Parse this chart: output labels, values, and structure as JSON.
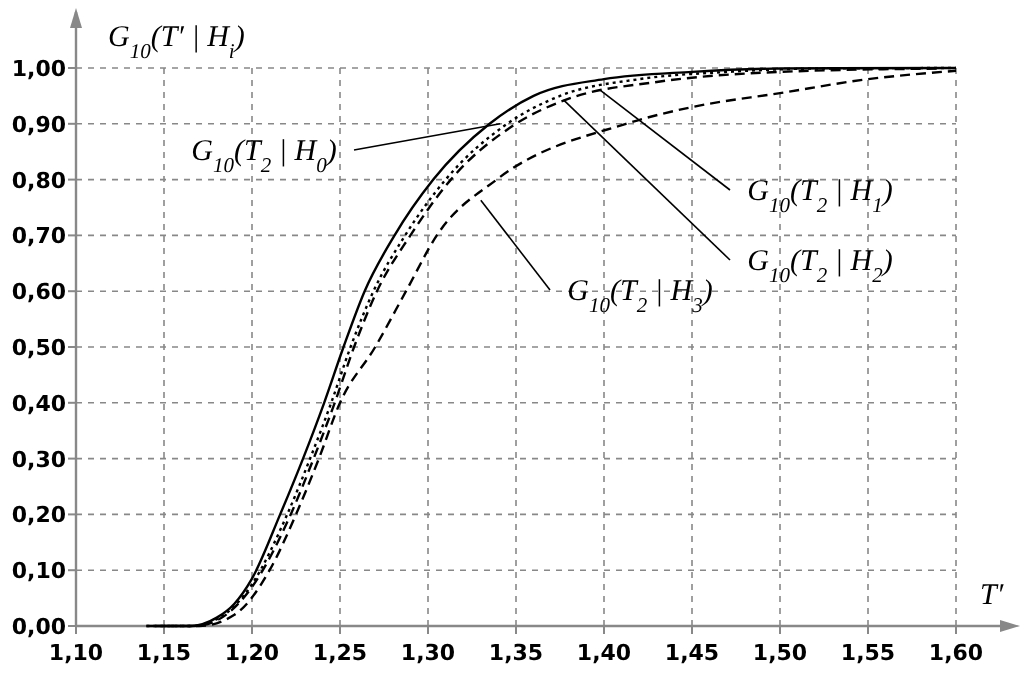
{
  "chart_data": {
    "type": "line",
    "xlabel": "T′",
    "ylabel": "G$_{10}$(T′ | H$_{i}$)",
    "xlim": [
      1.1,
      1.6
    ],
    "ylim": [
      0,
      1
    ],
    "xticks": [
      {
        "value": 1.1,
        "label": "1,10"
      },
      {
        "value": 1.15,
        "label": "1,15"
      },
      {
        "value": 1.2,
        "label": "1,20"
      },
      {
        "value": 1.25,
        "label": "1,25"
      },
      {
        "value": 1.3,
        "label": "1,30"
      },
      {
        "value": 1.35,
        "label": "1,35"
      },
      {
        "value": 1.4,
        "label": "1,40"
      },
      {
        "value": 1.45,
        "label": "1,45"
      },
      {
        "value": 1.5,
        "label": "1,50"
      },
      {
        "value": 1.55,
        "label": "1,55"
      },
      {
        "value": 1.6,
        "label": "1,60"
      }
    ],
    "yticks": [
      {
        "value": 0,
        "label": "0,00"
      },
      {
        "value": 0.1,
        "label": "0,10"
      },
      {
        "value": 0.2,
        "label": "0,20"
      },
      {
        "value": 0.3,
        "label": "0,30"
      },
      {
        "value": 0.4,
        "label": "0,40"
      },
      {
        "value": 0.5,
        "label": "0,50"
      },
      {
        "value": 0.6,
        "label": "0,60"
      },
      {
        "value": 0.7,
        "label": "0,70"
      },
      {
        "value": 0.8,
        "label": "0,80"
      },
      {
        "value": 0.9,
        "label": "0,90"
      },
      {
        "value": 1,
        "label": "1,00"
      }
    ],
    "grid": true,
    "series": [
      {
        "color": "#000000",
        "line_style": "solid",
        "x": [
          1.14,
          1.165,
          1.18,
          1.19,
          1.2,
          1.216,
          1.229,
          1.241,
          1.252,
          1.264,
          1.281,
          1.303,
          1.335,
          1.36,
          1.4,
          1.45,
          1.5,
          1.6
        ],
        "values": [
          0,
          0,
          0.015,
          0.04,
          0.085,
          0.2,
          0.3,
          0.4,
          0.5,
          0.6,
          0.7,
          0.8,
          0.9,
          0.95,
          0.98,
          0.993,
          0.999,
          1
        ]
      },
      {
        "color": "#000000",
        "line_style": "dotted",
        "x": [
          1.14,
          1.165,
          1.18,
          1.2,
          1.22,
          1.233,
          1.245,
          1.256,
          1.269,
          1.287,
          1.31,
          1.345,
          1.375,
          1.42,
          1.47,
          1.52,
          1.6
        ],
        "values": [
          0,
          0,
          0.012,
          0.075,
          0.2,
          0.3,
          0.4,
          0.5,
          0.6,
          0.7,
          0.8,
          0.9,
          0.95,
          0.98,
          0.993,
          0.999,
          1
        ]
      },
      {
        "color": "#000000",
        "line_style": "dashed",
        "x": [
          1.145,
          1.167,
          1.18,
          1.2,
          1.222,
          1.235,
          1.247,
          1.258,
          1.271,
          1.29,
          1.313,
          1.35,
          1.38,
          1.43,
          1.5,
          1.59
        ],
        "values": [
          0,
          0,
          0.01,
          0.07,
          0.2,
          0.3,
          0.4,
          0.5,
          0.6,
          0.7,
          0.8,
          0.9,
          0.945,
          0.975,
          0.993,
          0.999
        ]
      },
      {
        "color": "#000000",
        "line_style": "dashed",
        "x": [
          1.15,
          1.17,
          1.19,
          1.21,
          1.225,
          1.238,
          1.25,
          1.27,
          1.2875,
          1.305,
          1.339,
          1.4125,
          1.45,
          1.5,
          1.55,
          1.6
        ],
        "values": [
          0,
          0,
          0.02,
          0.1,
          0.2,
          0.3,
          0.4,
          0.5,
          0.6,
          0.7,
          0.8,
          0.9,
          0.93,
          0.955,
          0.98,
          0.995
        ]
      }
    ],
    "annotations": [
      {
        "text": "G$_{10}$(T$_{2}$ | H$_{0}$)",
        "x": 1.341,
        "y": 0.9
      },
      {
        "text": "G$_{10}$(T$_{2}$ | H$_{1}$)",
        "x": 1.398,
        "y": 0.96
      },
      {
        "text": "G$_{10}$(T$_{2}$ | H$_{2}$)",
        "x": 1.377,
        "y": 0.943
      },
      {
        "text": "G$_{10}$(T$_{2}$ | H$_{3}$)",
        "x": 1.33,
        "y": 0.763
      }
    ]
  }
}
